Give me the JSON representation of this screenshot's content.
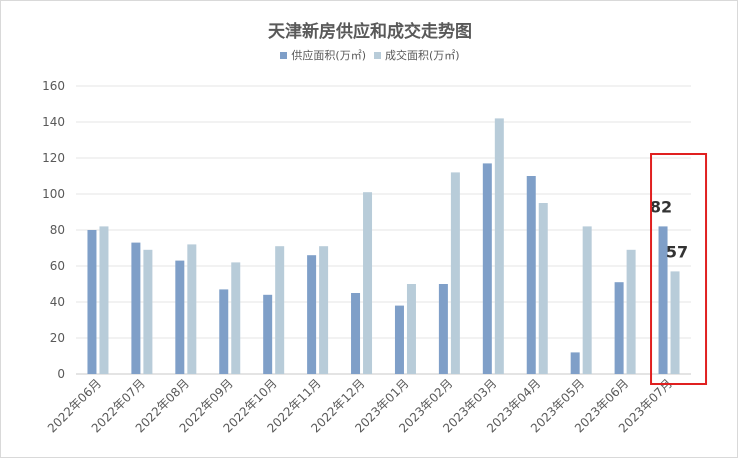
{
  "chart_data": {
    "type": "bar",
    "title": "天津新房供应和成交走势图",
    "categories": [
      "2022年06月",
      "2022年07月",
      "2022年08月",
      "2022年09月",
      "2022年10月",
      "2022年11月",
      "2022年12月",
      "2023年01月",
      "2023年02月",
      "2023年03月",
      "2023年04月",
      "2023年05月",
      "2023年06月",
      "2023年07月"
    ],
    "series": [
      {
        "name": "供应面积(万㎡)",
        "color": "#7f9fc8",
        "values": [
          80,
          73,
          63,
          47,
          44,
          66,
          45,
          38,
          50,
          117,
          110,
          12,
          51,
          82
        ]
      },
      {
        "name": "成交面积(万㎡)",
        "color": "#b8ccd9",
        "values": [
          82,
          69,
          72,
          62,
          71,
          71,
          101,
          50,
          112,
          142,
          95,
          82,
          69,
          57
        ]
      }
    ],
    "ylim": [
      0,
      160
    ],
    "yticks": [
      0,
      20,
      40,
      60,
      80,
      100,
      120,
      140,
      160
    ],
    "grid": true,
    "legend_position": "top-center",
    "annotations": [
      {
        "text": "82",
        "category": "2023年07月",
        "series": 0
      },
      {
        "text": "57",
        "category": "2023年07月",
        "series": 1
      }
    ],
    "highlight": {
      "category": "2023年07月",
      "color": "#e02020"
    }
  }
}
